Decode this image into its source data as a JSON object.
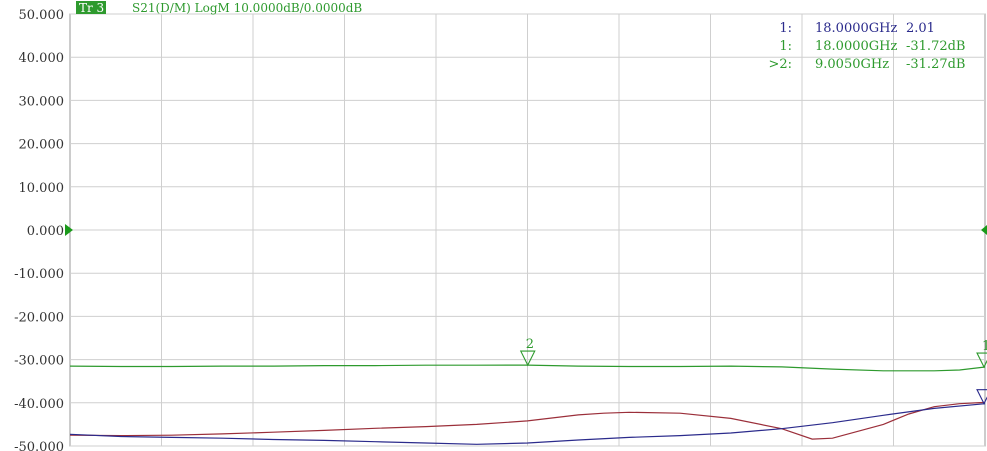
{
  "chart_data": {
    "type": "line",
    "title": "Tr 3  S21(D/M)  LogM 10.0000dB/0.0000dB",
    "trace_tag": "Tr 3",
    "trace_desc": "S21(D/M)  LogM 10.0000dB/0.0000dB",
    "xlabel": "",
    "ylabel": "",
    "xlim": [
      0,
      18
    ],
    "ylim": [
      -50,
      50
    ],
    "grid": true,
    "y_ticks": [
      {
        "value": 50,
        "label": "50.000"
      },
      {
        "value": 40,
        "label": "40.000"
      },
      {
        "value": 30,
        "label": "30.000"
      },
      {
        "value": 20,
        "label": "20.000"
      },
      {
        "value": 10,
        "label": "10.000"
      },
      {
        "value": 0,
        "label": "0.000"
      },
      {
        "value": -10,
        "label": "-10.000"
      },
      {
        "value": -20,
        "label": "-20.000"
      },
      {
        "value": -30,
        "label": "-30.000"
      },
      {
        "value": -40,
        "label": "-40.000"
      },
      {
        "value": -50,
        "label": "-50.000"
      }
    ],
    "x_divisions": 10,
    "series": [
      {
        "color": "#2e9a2e",
        "x": [
          0,
          1,
          2,
          3,
          4,
          5,
          6,
          7,
          8,
          9,
          10,
          11,
          12,
          13,
          14,
          15,
          16,
          17,
          17.5,
          18
        ],
        "y": [
          -31.5,
          -31.6,
          -31.6,
          -31.5,
          -31.5,
          -31.4,
          -31.4,
          -31.3,
          -31.3,
          -31.27,
          -31.5,
          -31.6,
          -31.6,
          -31.5,
          -31.7,
          -32.2,
          -32.6,
          -32.6,
          -32.4,
          -31.72
        ]
      },
      {
        "color": "#9b2f3a",
        "x": [
          0,
          1,
          2,
          3,
          4,
          5,
          6,
          7,
          8,
          9,
          10,
          10.5,
          11,
          12,
          13,
          14,
          14.6,
          15,
          16,
          16.5,
          17,
          17.5,
          18
        ],
        "y": [
          -47.5,
          -47.6,
          -47.5,
          -47.2,
          -46.8,
          -46.4,
          -45.9,
          -45.5,
          -45.0,
          -44.2,
          -42.8,
          -42.4,
          -42.2,
          -42.4,
          -43.6,
          -46.0,
          -48.4,
          -48.2,
          -45.0,
          -42.6,
          -40.9,
          -40.2,
          -39.9
        ]
      },
      {
        "color": "#2b2b8c",
        "x": [
          0,
          1,
          2,
          3,
          4,
          5,
          6,
          7,
          8,
          9,
          10,
          11,
          12,
          13,
          14,
          15,
          16,
          17,
          18
        ],
        "y": [
          -47.3,
          -47.8,
          -48.0,
          -48.2,
          -48.5,
          -48.7,
          -49.0,
          -49.3,
          -49.6,
          -49.3,
          -48.6,
          -48.0,
          -47.6,
          -47.0,
          -46.0,
          -44.6,
          -42.9,
          -41.3,
          -40.2
        ]
      }
    ],
    "marker_readouts": [
      {
        "id": "1:",
        "freq": "18.0000GHz",
        "value": "2.01",
        "color": "#2b2b8c"
      },
      {
        "id": "1:",
        "freq": "18.0000GHz",
        "value": "-31.72dB",
        "color": "#2e9a2e"
      },
      {
        "id": ">2:",
        "freq": "9.0050GHz",
        "value": "-31.27dB",
        "color": "#2e9a2e"
      }
    ],
    "markers": [
      {
        "label": "2",
        "x": 9.005,
        "y": -31.27,
        "color": "#2e9a2e"
      },
      {
        "label": "1",
        "x": 18.0,
        "y": -31.72,
        "color": "#2e9a2e"
      },
      {
        "label": "",
        "x": 18.0,
        "y": -40.2,
        "color": "#2b2b8c"
      }
    ]
  }
}
